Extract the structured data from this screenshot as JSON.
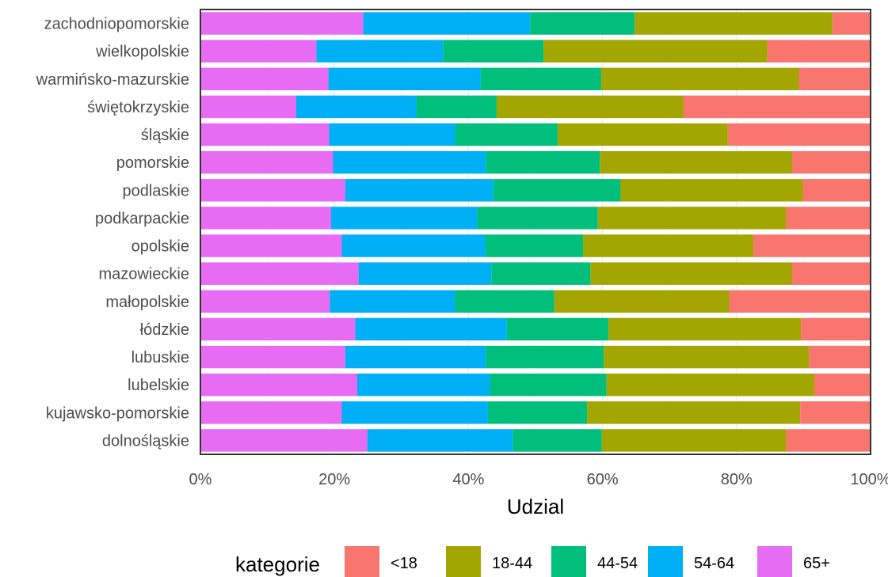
{
  "chart_data": {
    "type": "bar",
    "orientation": "horizontal",
    "stacked": "percent",
    "xlabel": "Udzial",
    "ylabel": "",
    "xlim": [
      0,
      1
    ],
    "x_ticks": [
      "0%",
      "20%",
      "40%",
      "60%",
      "80%",
      "100%"
    ],
    "grid": true,
    "legend_position": "bottom",
    "legend_title": "kategorie",
    "categories": [
      "zachodniopomorskie",
      "wielkopolskie",
      "warmińsko-mazurskie",
      "świętokrzyskie",
      "śląskie",
      "pomorskie",
      "podlaskie",
      "podkarpackie",
      "opolskie",
      "mazowieckie",
      "małopolskie",
      "łódzkie",
      "lubuskie",
      "lubelskie",
      "kujawsko-pomorskie",
      "dolnośląskie"
    ],
    "series": [
      {
        "name": "65+",
        "color": "#E76BF3",
        "values": [
          0.243,
          0.173,
          0.191,
          0.143,
          0.192,
          0.198,
          0.216,
          0.195,
          0.211,
          0.236,
          0.193,
          0.231,
          0.216,
          0.234,
          0.211,
          0.249
        ]
      },
      {
        "name": "54-64",
        "color": "#00B0F6",
        "values": [
          0.249,
          0.189,
          0.227,
          0.179,
          0.188,
          0.228,
          0.221,
          0.218,
          0.214,
          0.198,
          0.187,
          0.226,
          0.21,
          0.198,
          0.218,
          0.217
        ]
      },
      {
        "name": "44-54",
        "color": "#00BF7D",
        "values": [
          0.156,
          0.15,
          0.18,
          0.12,
          0.153,
          0.17,
          0.19,
          0.18,
          0.146,
          0.148,
          0.148,
          0.152,
          0.176,
          0.174,
          0.148,
          0.133
        ]
      },
      {
        "name": "18-44",
        "color": "#A3A500",
        "values": [
          0.295,
          0.334,
          0.295,
          0.279,
          0.254,
          0.287,
          0.272,
          0.281,
          0.254,
          0.301,
          0.261,
          0.287,
          0.306,
          0.31,
          0.318,
          0.275
        ]
      },
      {
        "name": "<18",
        "color": "#F8766D",
        "values": [
          0.057,
          0.154,
          0.107,
          0.279,
          0.213,
          0.117,
          0.101,
          0.126,
          0.175,
          0.117,
          0.211,
          0.104,
          0.092,
          0.084,
          0.105,
          0.126
        ]
      }
    ],
    "legend_order": [
      "<18",
      "18-44",
      "44-54",
      "54-64",
      "65+"
    ]
  }
}
